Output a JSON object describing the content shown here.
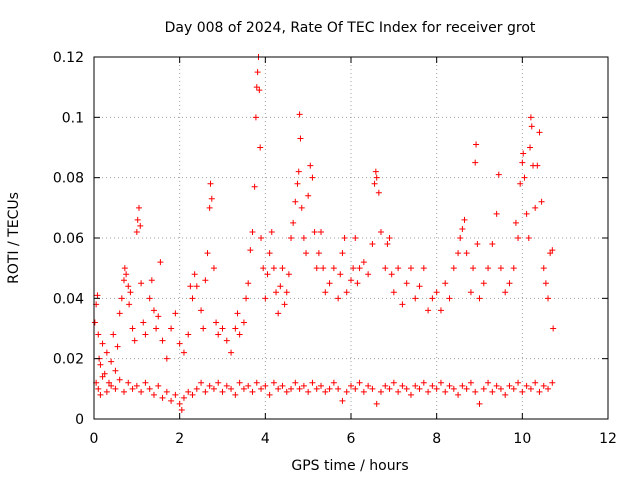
{
  "chart_data": {
    "type": "scatter",
    "title": "Day 008 of 2024, Rate Of TEC Index for receiver grot",
    "xlabel": "GPS time / hours",
    "ylabel": "ROTI / TECUs",
    "xlim": [
      0,
      12
    ],
    "ylim": [
      0,
      0.12
    ],
    "xticks": [
      "0",
      "2",
      "4",
      "6",
      "8",
      "10",
      "12"
    ],
    "yticks": [
      "0",
      "0.02",
      "0.04",
      "0.06",
      "0.08",
      "0.1",
      "0.12"
    ],
    "grid": true,
    "marker": "plus",
    "series_color": "#ff0000",
    "points": [
      [
        0.02,
        0.032
      ],
      [
        0.05,
        0.038
      ],
      [
        0.08,
        0.041
      ],
      [
        0.1,
        0.028
      ],
      [
        0.12,
        0.02
      ],
      [
        0.15,
        0.018
      ],
      [
        0.2,
        0.025
      ],
      [
        0.25,
        0.015
      ],
      [
        0.3,
        0.022
      ],
      [
        0.35,
        0.012
      ],
      [
        0.4,
        0.019
      ],
      [
        0.45,
        0.028
      ],
      [
        0.5,
        0.016
      ],
      [
        0.55,
        0.024
      ],
      [
        0.6,
        0.035
      ],
      [
        0.65,
        0.04
      ],
      [
        0.7,
        0.046
      ],
      [
        0.72,
        0.05
      ],
      [
        0.75,
        0.048
      ],
      [
        0.8,
        0.044
      ],
      [
        0.82,
        0.038
      ],
      [
        0.85,
        0.042
      ],
      [
        0.9,
        0.03
      ],
      [
        0.95,
        0.026
      ],
      [
        1.0,
        0.062
      ],
      [
        1.02,
        0.066
      ],
      [
        1.05,
        0.07
      ],
      [
        1.08,
        0.064
      ],
      [
        1.1,
        0.045
      ],
      [
        1.15,
        0.032
      ],
      [
        1.2,
        0.028
      ],
      [
        1.3,
        0.04
      ],
      [
        1.35,
        0.046
      ],
      [
        1.4,
        0.036
      ],
      [
        1.45,
        0.03
      ],
      [
        1.5,
        0.034
      ],
      [
        1.55,
        0.052
      ],
      [
        1.6,
        0.026
      ],
      [
        1.7,
        0.02
      ],
      [
        1.8,
        0.03
      ],
      [
        1.9,
        0.035
      ],
      [
        2.0,
        0.025
      ],
      [
        2.1,
        0.022
      ],
      [
        2.2,
        0.028
      ],
      [
        2.25,
        0.044
      ],
      [
        2.3,
        0.04
      ],
      [
        2.35,
        0.048
      ],
      [
        2.4,
        0.044
      ],
      [
        2.5,
        0.036
      ],
      [
        2.55,
        0.03
      ],
      [
        2.6,
        0.046
      ],
      [
        2.65,
        0.055
      ],
      [
        2.7,
        0.07
      ],
      [
        2.72,
        0.078
      ],
      [
        2.75,
        0.073
      ],
      [
        2.8,
        0.05
      ],
      [
        2.85,
        0.032
      ],
      [
        2.9,
        0.028
      ],
      [
        3.0,
        0.03
      ],
      [
        3.1,
        0.026
      ],
      [
        3.2,
        0.022
      ],
      [
        3.3,
        0.03
      ],
      [
        3.35,
        0.035
      ],
      [
        3.4,
        0.028
      ],
      [
        3.5,
        0.032
      ],
      [
        3.55,
        0.04
      ],
      [
        3.6,
        0.045
      ],
      [
        3.65,
        0.056
      ],
      [
        3.7,
        0.062
      ],
      [
        3.75,
        0.077
      ],
      [
        3.78,
        0.1
      ],
      [
        3.8,
        0.11
      ],
      [
        3.82,
        0.115
      ],
      [
        3.84,
        0.12
      ],
      [
        3.86,
        0.109
      ],
      [
        3.88,
        0.09
      ],
      [
        3.9,
        0.06
      ],
      [
        3.95,
        0.05
      ],
      [
        4.0,
        0.04
      ],
      [
        4.05,
        0.048
      ],
      [
        4.1,
        0.055
      ],
      [
        4.15,
        0.062
      ],
      [
        4.2,
        0.05
      ],
      [
        4.25,
        0.042
      ],
      [
        4.3,
        0.035
      ],
      [
        4.35,
        0.044
      ],
      [
        4.4,
        0.05
      ],
      [
        4.45,
        0.038
      ],
      [
        4.5,
        0.042
      ],
      [
        4.55,
        0.048
      ],
      [
        4.6,
        0.06
      ],
      [
        4.65,
        0.065
      ],
      [
        4.7,
        0.072
      ],
      [
        4.75,
        0.078
      ],
      [
        4.78,
        0.082
      ],
      [
        4.8,
        0.101
      ],
      [
        4.82,
        0.093
      ],
      [
        4.85,
        0.07
      ],
      [
        4.9,
        0.06
      ],
      [
        4.95,
        0.055
      ],
      [
        5.0,
        0.074
      ],
      [
        5.05,
        0.084
      ],
      [
        5.1,
        0.08
      ],
      [
        5.15,
        0.062
      ],
      [
        5.2,
        0.05
      ],
      [
        5.25,
        0.055
      ],
      [
        5.3,
        0.062
      ],
      [
        5.35,
        0.05
      ],
      [
        5.4,
        0.042
      ],
      [
        5.5,
        0.045
      ],
      [
        5.6,
        0.05
      ],
      [
        5.7,
        0.04
      ],
      [
        5.75,
        0.048
      ],
      [
        5.8,
        0.055
      ],
      [
        5.85,
        0.06
      ],
      [
        5.9,
        0.042
      ],
      [
        6.0,
        0.046
      ],
      [
        6.05,
        0.05
      ],
      [
        6.1,
        0.06
      ],
      [
        6.15,
        0.045
      ],
      [
        6.2,
        0.05
      ],
      [
        6.3,
        0.052
      ],
      [
        6.4,
        0.048
      ],
      [
        6.5,
        0.058
      ],
      [
        6.55,
        0.078
      ],
      [
        6.58,
        0.082
      ],
      [
        6.6,
        0.08
      ],
      [
        6.65,
        0.075
      ],
      [
        6.7,
        0.062
      ],
      [
        6.8,
        0.05
      ],
      [
        6.85,
        0.058
      ],
      [
        6.9,
        0.06
      ],
      [
        6.95,
        0.048
      ],
      [
        7.0,
        0.042
      ],
      [
        7.1,
        0.05
      ],
      [
        7.2,
        0.038
      ],
      [
        7.3,
        0.045
      ],
      [
        7.4,
        0.05
      ],
      [
        7.5,
        0.04
      ],
      [
        7.6,
        0.044
      ],
      [
        7.7,
        0.05
      ],
      [
        7.8,
        0.036
      ],
      [
        7.9,
        0.04
      ],
      [
        8.0,
        0.042
      ],
      [
        8.1,
        0.036
      ],
      [
        8.2,
        0.045
      ],
      [
        8.3,
        0.04
      ],
      [
        8.4,
        0.05
      ],
      [
        8.5,
        0.055
      ],
      [
        8.55,
        0.06
      ],
      [
        8.6,
        0.063
      ],
      [
        8.65,
        0.066
      ],
      [
        8.7,
        0.055
      ],
      [
        8.8,
        0.042
      ],
      [
        8.85,
        0.05
      ],
      [
        8.9,
        0.085
      ],
      [
        8.92,
        0.091
      ],
      [
        8.95,
        0.058
      ],
      [
        9.0,
        0.04
      ],
      [
        9.1,
        0.045
      ],
      [
        9.2,
        0.05
      ],
      [
        9.3,
        0.058
      ],
      [
        9.4,
        0.068
      ],
      [
        9.45,
        0.081
      ],
      [
        9.5,
        0.05
      ],
      [
        9.6,
        0.042
      ],
      [
        9.7,
        0.045
      ],
      [
        9.8,
        0.05
      ],
      [
        9.85,
        0.065
      ],
      [
        9.9,
        0.06
      ],
      [
        9.95,
        0.078
      ],
      [
        10.0,
        0.085
      ],
      [
        10.02,
        0.088
      ],
      [
        10.05,
        0.08
      ],
      [
        10.1,
        0.068
      ],
      [
        10.15,
        0.06
      ],
      [
        10.18,
        0.09
      ],
      [
        10.2,
        0.1
      ],
      [
        10.22,
        0.097
      ],
      [
        10.25,
        0.084
      ],
      [
        10.3,
        0.07
      ],
      [
        10.35,
        0.084
      ],
      [
        10.4,
        0.095
      ],
      [
        10.45,
        0.072
      ],
      [
        10.5,
        0.05
      ],
      [
        10.55,
        0.045
      ],
      [
        10.6,
        0.04
      ],
      [
        10.65,
        0.055
      ],
      [
        10.7,
        0.056
      ],
      [
        10.72,
        0.03
      ],
      [
        0.05,
        0.012
      ],
      [
        0.1,
        0.01
      ],
      [
        0.15,
        0.008
      ],
      [
        0.2,
        0.014
      ],
      [
        0.3,
        0.009
      ],
      [
        0.4,
        0.011
      ],
      [
        0.5,
        0.01
      ],
      [
        0.6,
        0.013
      ],
      [
        0.7,
        0.009
      ],
      [
        0.8,
        0.012
      ],
      [
        0.9,
        0.01
      ],
      [
        1.0,
        0.011
      ],
      [
        1.1,
        0.009
      ],
      [
        1.2,
        0.012
      ],
      [
        1.3,
        0.01
      ],
      [
        1.4,
        0.008
      ],
      [
        1.5,
        0.011
      ],
      [
        1.6,
        0.007
      ],
      [
        1.7,
        0.009
      ],
      [
        1.8,
        0.006
      ],
      [
        1.9,
        0.008
      ],
      [
        2.0,
        0.005
      ],
      [
        2.05,
        0.003
      ],
      [
        2.1,
        0.007
      ],
      [
        2.2,
        0.009
      ],
      [
        2.3,
        0.008
      ],
      [
        2.4,
        0.01
      ],
      [
        2.5,
        0.012
      ],
      [
        2.6,
        0.009
      ],
      [
        2.7,
        0.011
      ],
      [
        2.8,
        0.01
      ],
      [
        2.9,
        0.012
      ],
      [
        3.0,
        0.009
      ],
      [
        3.1,
        0.011
      ],
      [
        3.2,
        0.01
      ],
      [
        3.3,
        0.008
      ],
      [
        3.4,
        0.012
      ],
      [
        3.5,
        0.01
      ],
      [
        3.6,
        0.011
      ],
      [
        3.7,
        0.009
      ],
      [
        3.8,
        0.012
      ],
      [
        3.9,
        0.01
      ],
      [
        4.0,
        0.011
      ],
      [
        4.1,
        0.008
      ],
      [
        4.2,
        0.012
      ],
      [
        4.3,
        0.01
      ],
      [
        4.4,
        0.011
      ],
      [
        4.5,
        0.009
      ],
      [
        4.6,
        0.01
      ],
      [
        4.7,
        0.012
      ],
      [
        4.8,
        0.01
      ],
      [
        4.9,
        0.011
      ],
      [
        5.0,
        0.009
      ],
      [
        5.1,
        0.012
      ],
      [
        5.2,
        0.01
      ],
      [
        5.3,
        0.011
      ],
      [
        5.4,
        0.009
      ],
      [
        5.5,
        0.01
      ],
      [
        5.6,
        0.012
      ],
      [
        5.7,
        0.01
      ],
      [
        5.8,
        0.006
      ],
      [
        5.9,
        0.009
      ],
      [
        6.0,
        0.011
      ],
      [
        6.1,
        0.01
      ],
      [
        6.2,
        0.012
      ],
      [
        6.3,
        0.009
      ],
      [
        6.4,
        0.011
      ],
      [
        6.5,
        0.01
      ],
      [
        6.6,
        0.005
      ],
      [
        6.7,
        0.009
      ],
      [
        6.8,
        0.011
      ],
      [
        6.9,
        0.01
      ],
      [
        7.0,
        0.012
      ],
      [
        7.1,
        0.009
      ],
      [
        7.2,
        0.011
      ],
      [
        7.3,
        0.01
      ],
      [
        7.4,
        0.008
      ],
      [
        7.5,
        0.011
      ],
      [
        7.6,
        0.01
      ],
      [
        7.7,
        0.012
      ],
      [
        7.8,
        0.009
      ],
      [
        7.9,
        0.011
      ],
      [
        8.0,
        0.01
      ],
      [
        8.1,
        0.012
      ],
      [
        8.2,
        0.009
      ],
      [
        8.3,
        0.011
      ],
      [
        8.4,
        0.01
      ],
      [
        8.5,
        0.008
      ],
      [
        8.6,
        0.011
      ],
      [
        8.7,
        0.01
      ],
      [
        8.8,
        0.012
      ],
      [
        8.9,
        0.009
      ],
      [
        9.0,
        0.005
      ],
      [
        9.1,
        0.01
      ],
      [
        9.2,
        0.012
      ],
      [
        9.3,
        0.009
      ],
      [
        9.4,
        0.011
      ],
      [
        9.5,
        0.01
      ],
      [
        9.6,
        0.008
      ],
      [
        9.7,
        0.011
      ],
      [
        9.8,
        0.01
      ],
      [
        9.9,
        0.012
      ],
      [
        10.0,
        0.009
      ],
      [
        10.1,
        0.011
      ],
      [
        10.2,
        0.01
      ],
      [
        10.3,
        0.012
      ],
      [
        10.4,
        0.009
      ],
      [
        10.5,
        0.011
      ],
      [
        10.6,
        0.01
      ],
      [
        10.7,
        0.012
      ]
    ]
  }
}
